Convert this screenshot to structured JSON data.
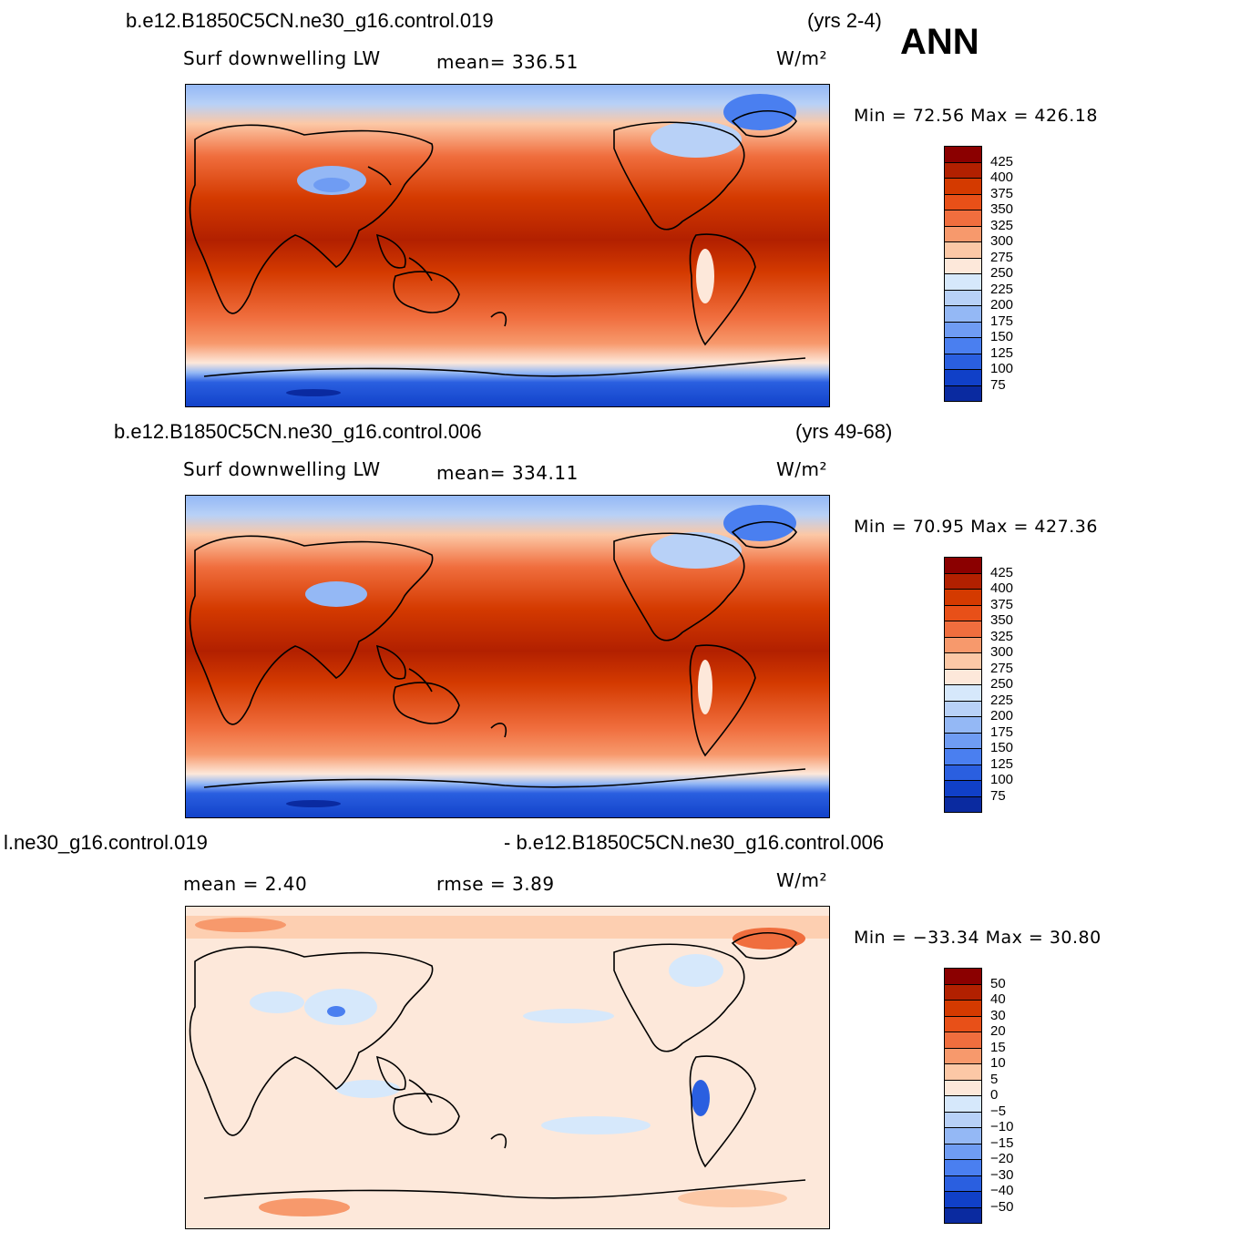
{
  "season": "ANN",
  "panels": [
    {
      "case": "b.e12.B1850C5CN.ne30_g16.control.019",
      "years": "(yrs 2-4)",
      "variable": "Surf  downwelling  LW",
      "stat1": "mean=  336.51",
      "stat2": "",
      "units": "W/m²",
      "minmax": "Min  =    72.56  Max  =  426.18",
      "colorbar": {
        "labels": [
          "425",
          "400",
          "375",
          "350",
          "325",
          "300",
          "275",
          "250",
          "225",
          "200",
          "175",
          "150",
          "125",
          "100",
          "75"
        ],
        "colors": [
          "#8b0000",
          "#b22000",
          "#d43a00",
          "#e85018",
          "#f06e3e",
          "#f7996c",
          "#fcc8a6",
          "#fde8da",
          "#d6e8fb",
          "#b8d1f7",
          "#94b8f5",
          "#6f9cf3",
          "#4a7ff0",
          "#2a5fe0",
          "#1040c8",
          "#0a2aa0"
        ]
      },
      "map_field": "absolute"
    },
    {
      "case": "b.e12.B1850C5CN.ne30_g16.control.006",
      "years": "(yrs 49-68)",
      "variable": "Surf  downwelling  LW",
      "stat1": "mean=  334.11",
      "stat2": "",
      "units": "W/m²",
      "minmax": "Min  =    70.95  Max  =  427.36",
      "colorbar": {
        "labels": [
          "425",
          "400",
          "375",
          "350",
          "325",
          "300",
          "275",
          "250",
          "225",
          "200",
          "175",
          "150",
          "125",
          "100",
          "75"
        ],
        "colors": [
          "#8b0000",
          "#b22000",
          "#d43a00",
          "#e85018",
          "#f06e3e",
          "#f7996c",
          "#fcc8a6",
          "#fde8da",
          "#d6e8fb",
          "#b8d1f7",
          "#94b8f5",
          "#6f9cf3",
          "#4a7ff0",
          "#2a5fe0",
          "#1040c8",
          "#0a2aa0"
        ]
      },
      "map_field": "absolute"
    },
    {
      "case_left": "l.ne30_g16.control.019",
      "case_right": "- b.e12.B1850C5CN.ne30_g16.control.006",
      "stat1": "mean  =     2.40",
      "stat2": "rmse  =     3.89",
      "units": "W/m²",
      "minmax": "Min  = −33.34  Max  =    30.80",
      "colorbar": {
        "labels": [
          "50",
          "40",
          "30",
          "20",
          "15",
          "10",
          "5",
          "0",
          "−5",
          "−10",
          "−15",
          "−20",
          "−30",
          "−40",
          "−50"
        ],
        "colors": [
          "#8b0000",
          "#b22000",
          "#d43a00",
          "#e85018",
          "#f06e3e",
          "#f7996c",
          "#fcc8a6",
          "#fde8da",
          "#d6e8fb",
          "#b8d1f7",
          "#94b8f5",
          "#6f9cf3",
          "#4a7ff0",
          "#2a5fe0",
          "#1040c8",
          "#0a2aa0"
        ]
      },
      "map_field": "difference"
    }
  ]
}
